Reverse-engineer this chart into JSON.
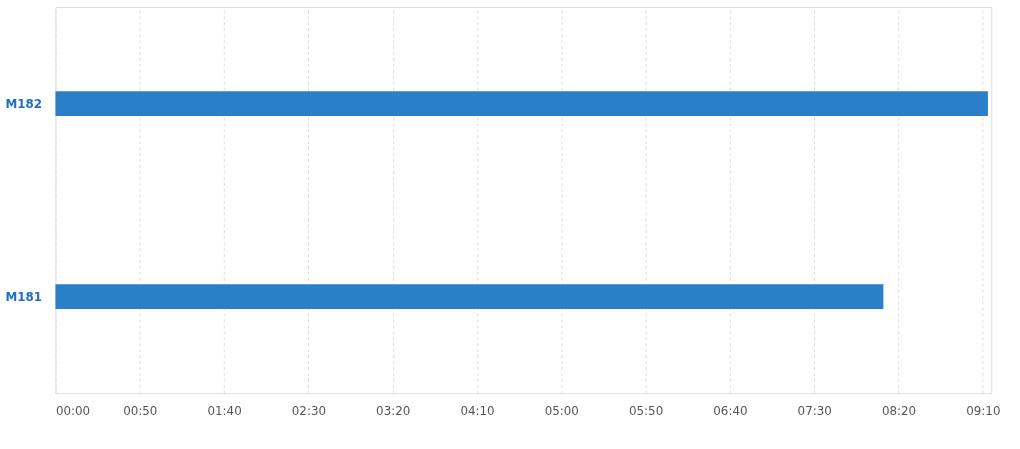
{
  "chart_data": {
    "type": "bar",
    "orientation": "horizontal",
    "categories": [
      "M182",
      "M181"
    ],
    "values": [
      553,
      491
    ],
    "color": "#2a7fc8",
    "xlim": [
      0,
      555
    ],
    "xticks": [
      {
        "value": 0,
        "label": "00:00"
      },
      {
        "value": 50,
        "label": "00:50"
      },
      {
        "value": 100,
        "label": "01:40"
      },
      {
        "value": 150,
        "label": "02:30"
      },
      {
        "value": 200,
        "label": "03:20"
      },
      {
        "value": 250,
        "label": "04:10"
      },
      {
        "value": 300,
        "label": "05:00"
      },
      {
        "value": 350,
        "label": "05:50"
      },
      {
        "value": 400,
        "label": "06:40"
      },
      {
        "value": 450,
        "label": "07:30"
      },
      {
        "value": 500,
        "label": "08:20"
      },
      {
        "value": 550,
        "label": "09:10"
      }
    ],
    "grid": "x"
  }
}
